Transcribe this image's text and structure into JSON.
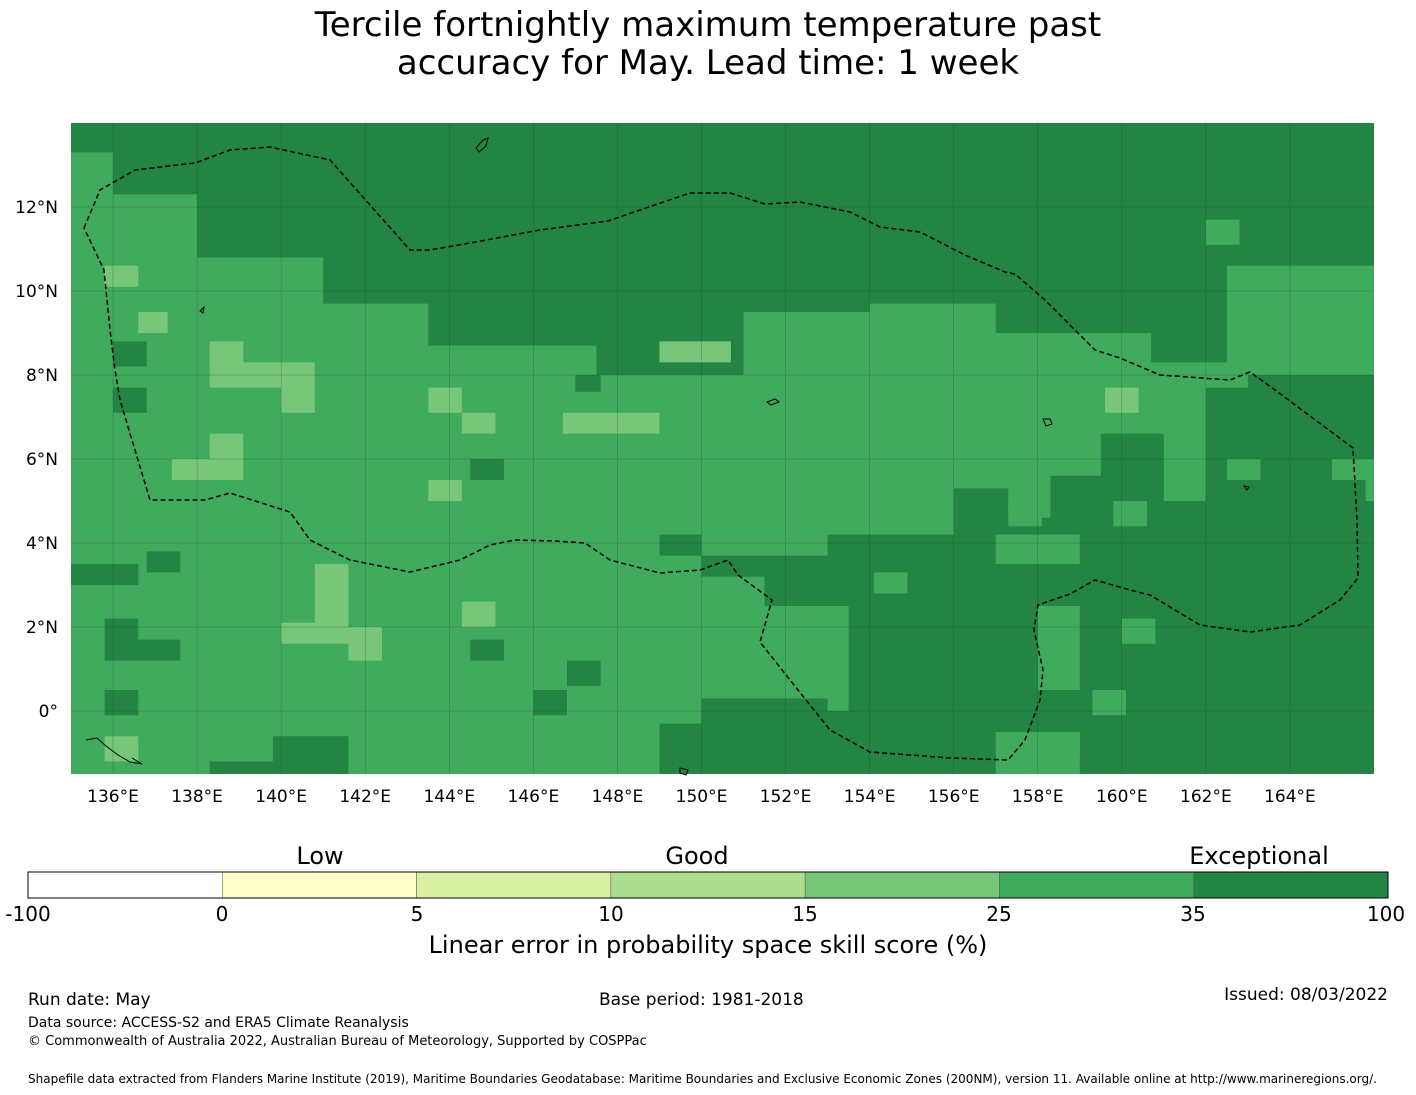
{
  "title": {
    "line1": "Tercile fortnightly maximum temperature past",
    "line2": "accuracy for May. Lead time: 1 week"
  },
  "map": {
    "lon_range": [
      135,
      166
    ],
    "lat_range": [
      -1.5,
      14
    ],
    "lon_ticks": [
      "136°E",
      "138°E",
      "140°E",
      "142°E",
      "144°E",
      "146°E",
      "148°E",
      "150°E",
      "152°E",
      "154°E",
      "156°E",
      "158°E",
      "160°E",
      "162°E",
      "164°E"
    ],
    "lat_ticks": [
      "12°N",
      "10°N",
      "8°N",
      "6°N",
      "4°N",
      "2°N",
      "0°"
    ],
    "colors": {
      "c10": "#addd8e",
      "c15": "#78c679",
      "c25": "#41ab5d",
      "c35": "#238443"
    },
    "base_category": "c25",
    "grid_rows": [
      "55555555555555555555555555555555555555555555555555",
      "44555555555555555555555555555555555555555555555555",
      "44455555555555555555555555555555555555555555555555",
      "44444555555555555555555555555555555555555555555555",
      "44444544445455555555555555555555555555555555554455",
      "44444555555555555555555555555555555555555555555555",
      "43444444445555555555555555555555555555555555555555",
      "44344444444444555555555555555555555555555555555555",
      "44444444444444555555555555555555555555455555555555",
      "44444444444444455555444555555544444455555555555555",
      "44444444444444444455555555444444444445555555555555",
      "44444444444444444444444554444444444444445555555555",
      "44444444444444444444444444444444444444444444444444",
      "44444444444444444444444444444444444444444444444444",
      "44444444444444444444444444444444444444444444444444",
      "44444444444444444444444444444444444444444444444444",
      "44444444444444444444444444444444444444444444444444",
      "44444444444444444444444444444444444444444444444444",
      "44444444444444444444444444444444444444444444444444",
      "44444444444444444444444444444444444444444444444444",
      "44444444444444444444444444444444444444444444444444",
      "44444444444444444444444444444444444444444444444444",
      "44444444444444444444444444444444444444444444444444",
      "44444444444444444444444444444444444444444444444444",
      "44444444444444444444444444444444444444444444444444",
      "44444444444444444444444444444444444444444444444444",
      "44444444444444444444444444444444444444444444444444",
      "44444444444444444444444444444444444444444444444444"
    ]
  },
  "colorbar": {
    "words": [
      "Low",
      "Good",
      "Exceptional"
    ],
    "ticks": [
      "-100",
      "0",
      "5",
      "10",
      "15",
      "25",
      "35",
      "100"
    ],
    "colors": [
      "#ffffff",
      "#ffffcc",
      "#d9f0a3",
      "#addd8e",
      "#78c679",
      "#41ab5d",
      "#238443"
    ],
    "label": "Linear error in probability space skill score (%)"
  },
  "footer": {
    "run_date": "Run date: May",
    "base_period": "Base period: 1981-2018",
    "issued": "Issued: 08/03/2022",
    "data_source": "Data source: ACCESS-S2 and ERA5 Climate Reanalysis",
    "copyright": "© Commonwealth of Australia 2022, Australian Bureau of Meteorology, Supported by COSPPac",
    "shapefile": "Shapefile data extracted from Flanders Marine Institute (2019), Maritime Boundaries Geodatabase: Maritime Boundaries and Exclusive Economic Zones (200NM), version 11. Available online at http://www.marineregions.org/."
  }
}
